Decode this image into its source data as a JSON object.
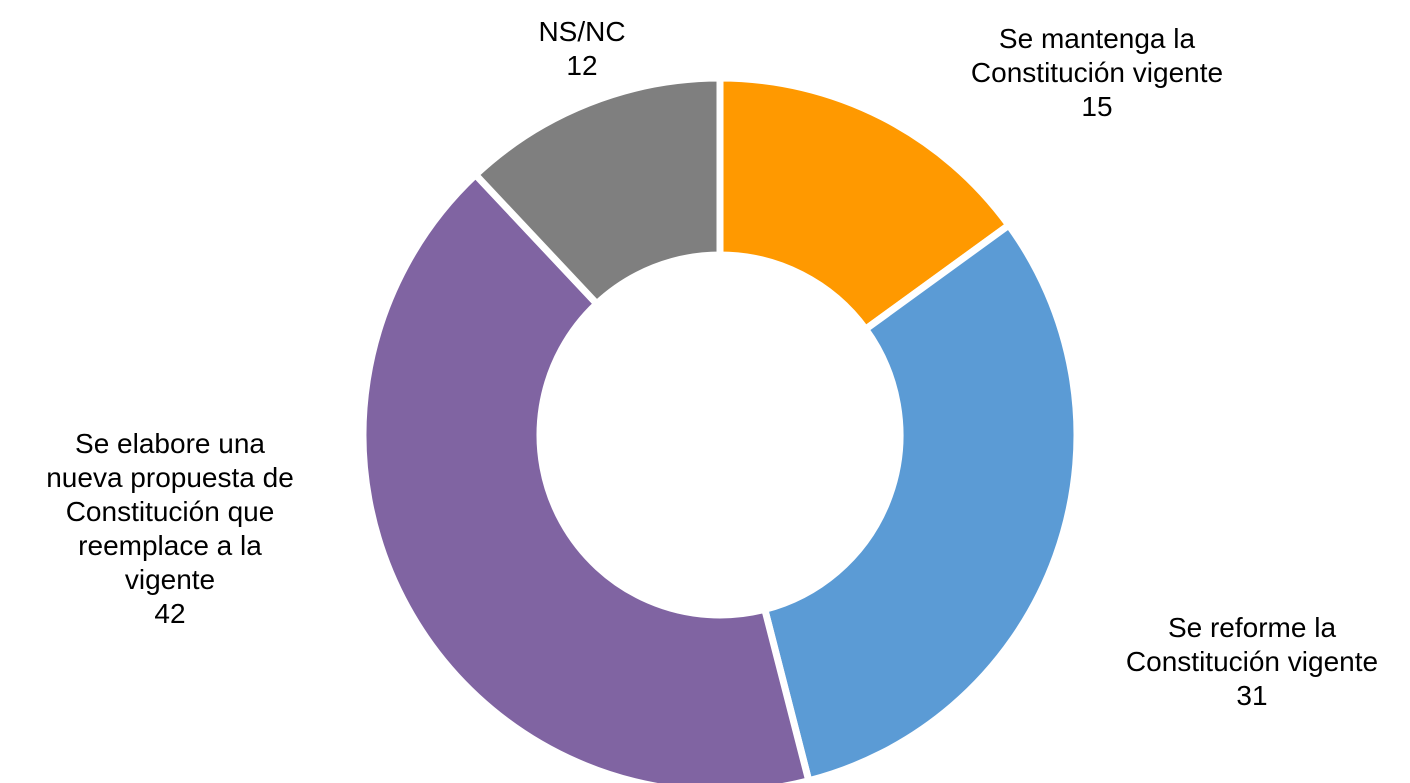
{
  "chart_data": {
    "type": "pie",
    "variant": "donut",
    "title": "",
    "start_at": "top",
    "direction": "clockwise",
    "slices": [
      {
        "label_lines": [
          "Se mantenga la",
          "Constitución vigente"
        ],
        "value": 15,
        "value_text": "15",
        "color": "#FF9900"
      },
      {
        "label_lines": [
          "Se reforme la",
          "Constitución vigente"
        ],
        "value": 31,
        "value_text": "31",
        "color": "#5B9BD5"
      },
      {
        "label_lines": [
          "Se elabore una",
          "nueva propuesta de",
          "Constitución que",
          "reemplace a la",
          "vigente"
        ],
        "value": 42,
        "value_text": "42",
        "color": "#8064A2"
      },
      {
        "label_lines": [
          "NS/NC"
        ],
        "value": 12,
        "value_text": "12",
        "color": "#7F7F7F"
      }
    ]
  }
}
